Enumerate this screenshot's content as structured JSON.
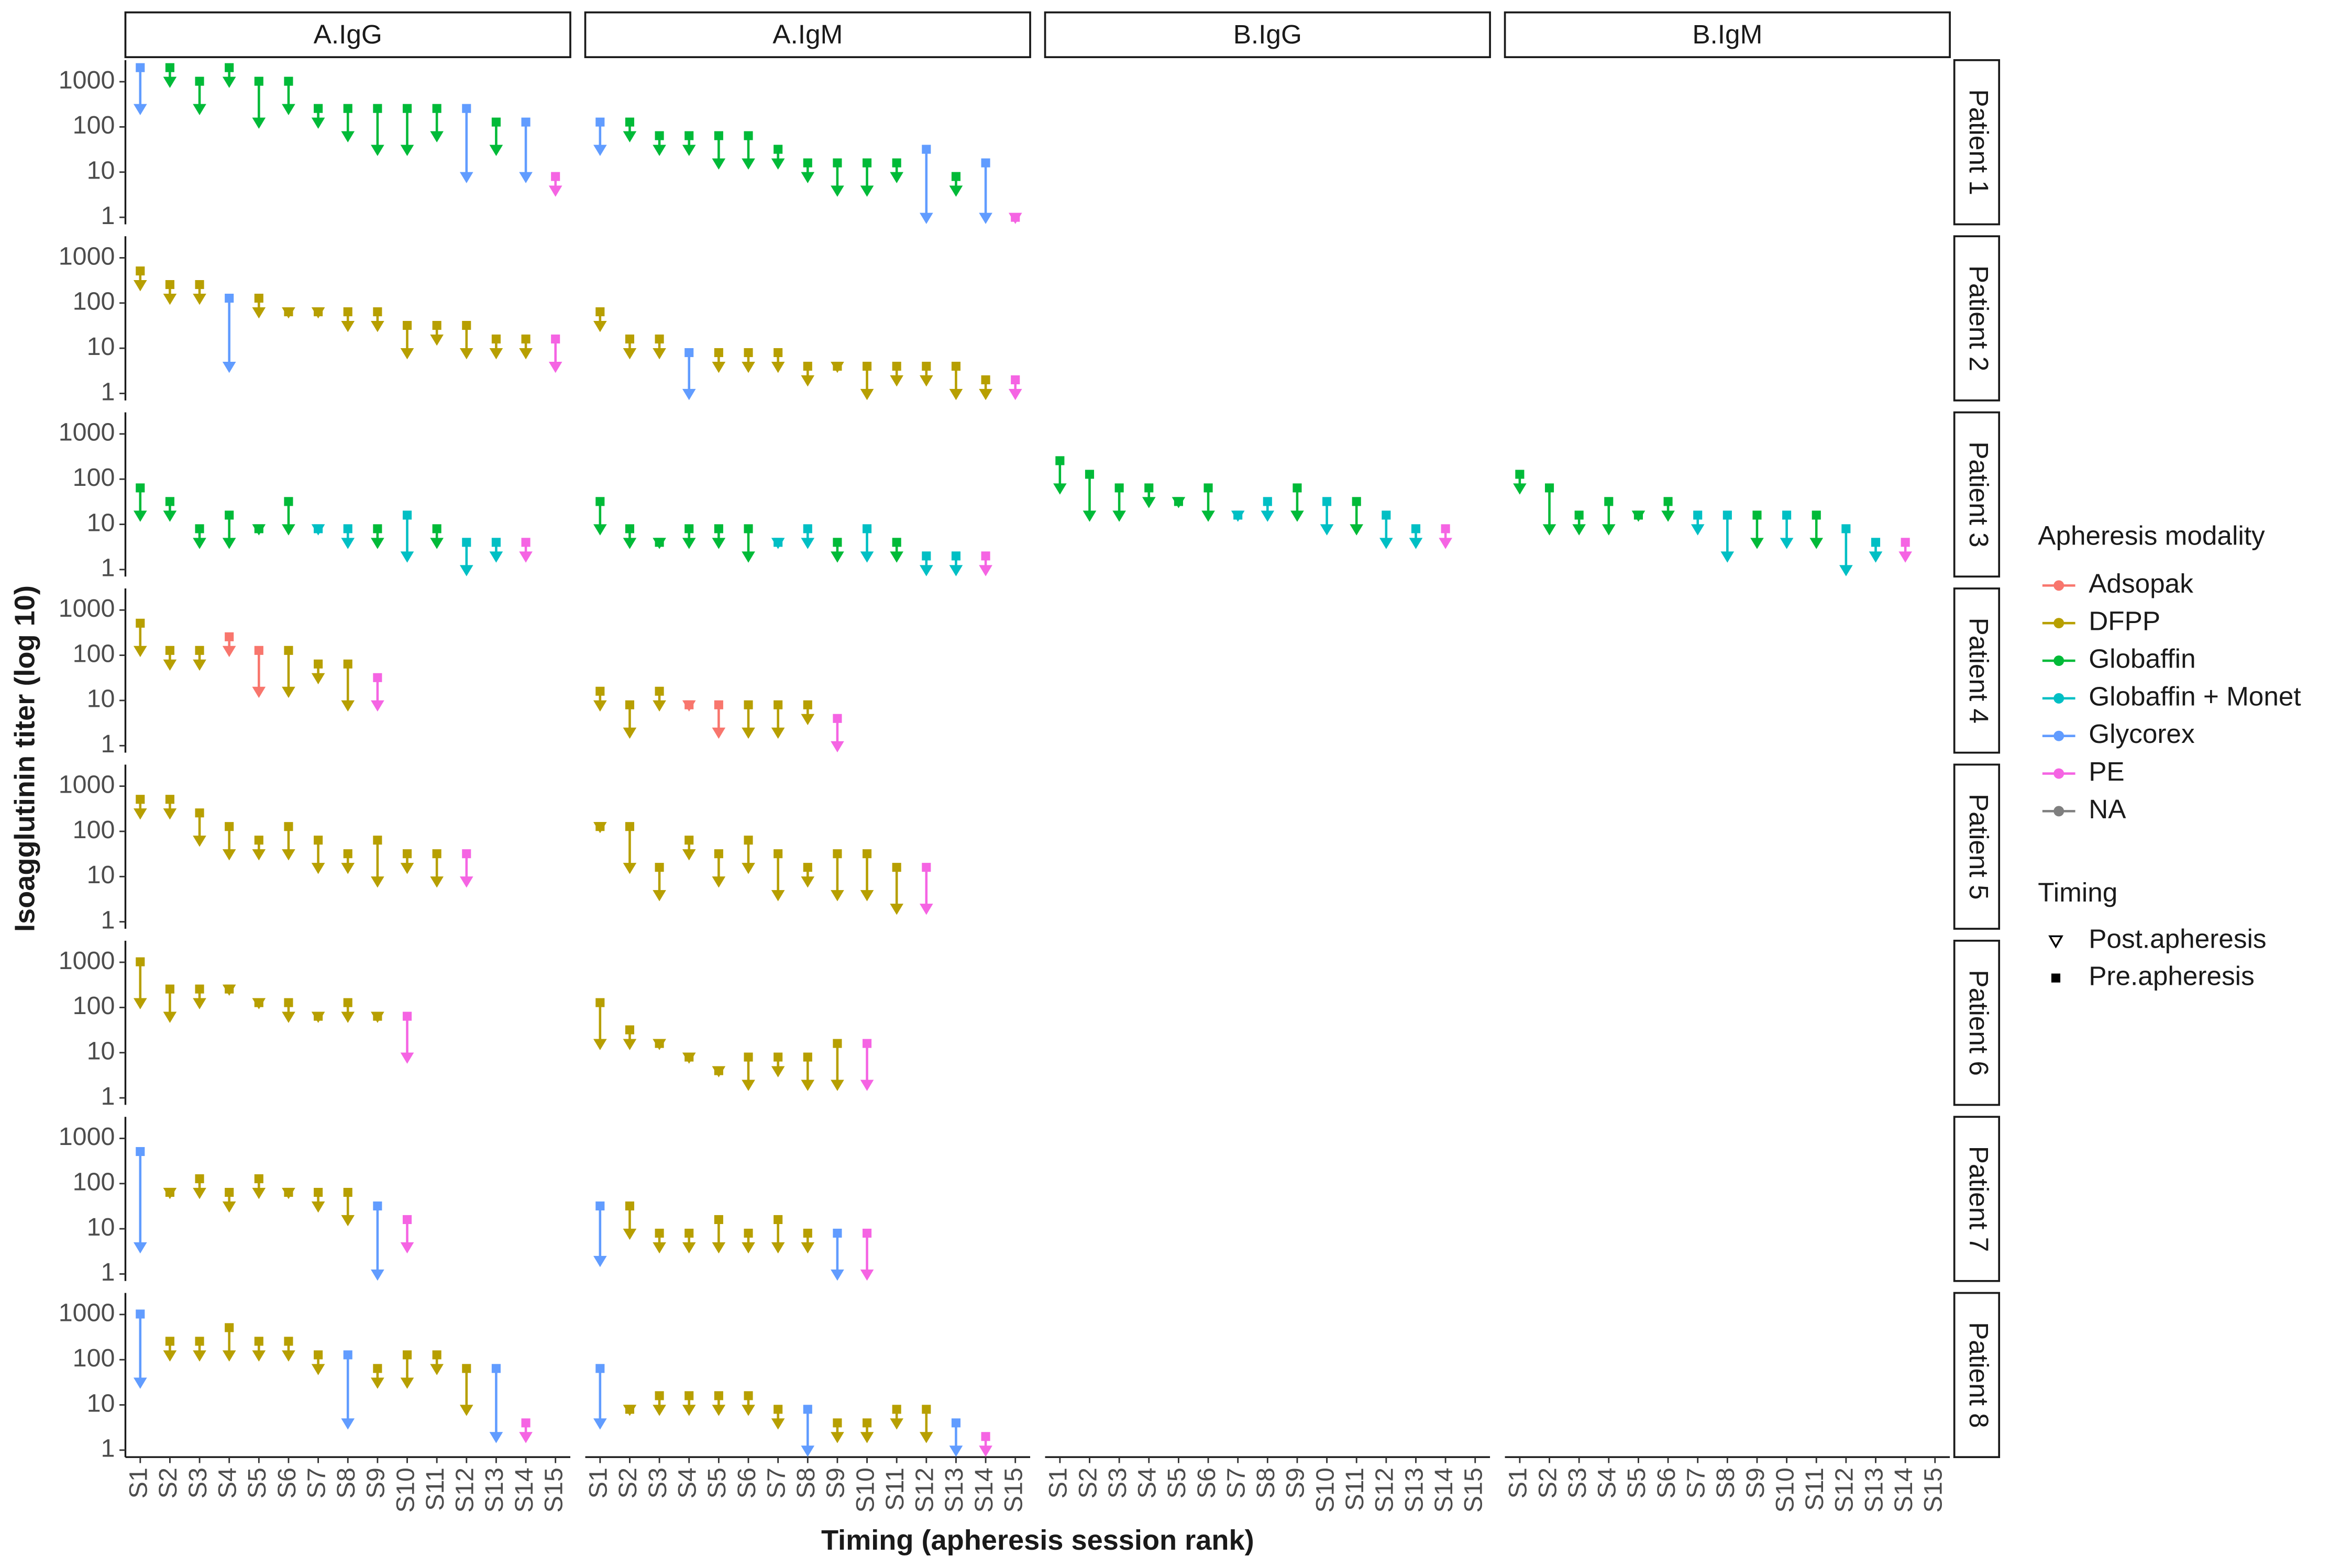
{
  "chart_data": {
    "type": "dumbbell",
    "log_scale": true,
    "x_label": "Timing (apheresis session rank)",
    "y_label": "Isoagglutinin titer (log 10)",
    "categories": [
      "S1",
      "S2",
      "S3",
      "S4",
      "S5",
      "S6",
      "S7",
      "S8",
      "S9",
      "S10",
      "S11",
      "S12",
      "S13",
      "S14",
      "S15"
    ],
    "columns": [
      "A.IgG",
      "A.IgM",
      "B.IgG",
      "B.IgM"
    ],
    "rows": [
      "Patient 1",
      "Patient 2",
      "Patient 3",
      "Patient 4",
      "Patient 5",
      "Patient 6",
      "Patient 7",
      "Patient 8"
    ],
    "ylim": [
      0.7,
      3000
    ],
    "yticks": [
      1,
      10,
      100,
      1000
    ],
    "legend": {
      "title": "Apheresis modality",
      "entries": [
        {
          "name": "Adsopak",
          "color": "#F8766D"
        },
        {
          "name": "DFPP",
          "color": "#B79F00"
        },
        {
          "name": "Globaffin",
          "color": "#00BA38"
        },
        {
          "name": "Globaffin + Monet",
          "color": "#00BFC4"
        },
        {
          "name": "Glycorex",
          "color": "#619CFF"
        },
        {
          "name": "PE",
          "color": "#F564E3"
        },
        {
          "name": "NA",
          "color": "#7F7F7F"
        }
      ]
    },
    "shape_legend": {
      "title": "Timing",
      "entries": [
        "Post.apheresis",
        "Pre.apheresis"
      ]
    },
    "panels": [
      [
        {
          "pre": [
            2048,
            2048,
            1024,
            2048,
            1024,
            1024,
            256,
            256,
            256,
            256,
            256,
            256,
            128,
            128,
            8
          ],
          "post": [
            256,
            1024,
            256,
            1024,
            128,
            256,
            128,
            64,
            32,
            32,
            64,
            8,
            32,
            8,
            4
          ],
          "modality": [
            "Glycorex",
            "Globaffin",
            "Globaffin",
            "Globaffin",
            "Globaffin",
            "Globaffin",
            "Globaffin",
            "Globaffin",
            "Globaffin",
            "Globaffin",
            "Globaffin",
            "Glycorex",
            "Globaffin",
            "Glycorex",
            "PE"
          ]
        },
        {
          "pre": [
            128,
            128,
            64,
            64,
            64,
            64,
            32,
            16,
            16,
            16,
            16,
            32,
            8,
            16,
            1
          ],
          "post": [
            32,
            64,
            32,
            32,
            16,
            16,
            16,
            8,
            4,
            4,
            8,
            1,
            4,
            1,
            1
          ],
          "modality": [
            "Glycorex",
            "Globaffin",
            "Globaffin",
            "Globaffin",
            "Globaffin",
            "Globaffin",
            "Globaffin",
            "Globaffin",
            "Globaffin",
            "Globaffin",
            "Globaffin",
            "Glycorex",
            "Globaffin",
            "Glycorex",
            "PE"
          ]
        },
        null,
        null
      ],
      [
        {
          "pre": [
            512,
            256,
            256,
            128,
            128,
            64,
            64,
            64,
            64,
            32,
            32,
            32,
            16,
            16,
            16
          ],
          "post": [
            256,
            128,
            128,
            4,
            64,
            64,
            64,
            32,
            32,
            8,
            16,
            8,
            8,
            8,
            4
          ],
          "modality": [
            "DFPP",
            "DFPP",
            "DFPP",
            "Glycorex",
            "DFPP",
            "DFPP",
            "DFPP",
            "DFPP",
            "DFPP",
            "DFPP",
            "DFPP",
            "DFPP",
            "DFPP",
            "DFPP",
            "PE"
          ]
        },
        {
          "pre": [
            64,
            16,
            16,
            8,
            8,
            8,
            8,
            4,
            4,
            4,
            4,
            4,
            4,
            2,
            2
          ],
          "post": [
            32,
            8,
            8,
            1,
            4,
            4,
            4,
            2,
            4,
            1,
            2,
            2,
            1,
            1,
            1
          ],
          "modality": [
            "DFPP",
            "DFPP",
            "DFPP",
            "Glycorex",
            "DFPP",
            "DFPP",
            "DFPP",
            "DFPP",
            "DFPP",
            "DFPP",
            "DFPP",
            "DFPP",
            "DFPP",
            "DFPP",
            "PE"
          ]
        },
        null,
        null
      ],
      [
        {
          "pre": [
            64,
            32,
            8,
            16,
            8,
            32,
            8,
            8,
            8,
            16,
            8,
            4,
            4,
            4,
            null
          ],
          "post": [
            16,
            16,
            4,
            4,
            8,
            8,
            8,
            4,
            4,
            2,
            4,
            1,
            2,
            2,
            null
          ],
          "modality": [
            "Globaffin",
            "Globaffin",
            "Globaffin",
            "Globaffin",
            "Globaffin",
            "Globaffin",
            "Globaffin + Monet",
            "Globaffin + Monet",
            "Globaffin",
            "Globaffin + Monet",
            "Globaffin",
            "Globaffin + Monet",
            "Globaffin + Monet",
            "PE",
            null
          ]
        },
        {
          "pre": [
            32,
            8,
            4,
            8,
            8,
            8,
            4,
            8,
            4,
            8,
            4,
            2,
            2,
            2,
            null
          ],
          "post": [
            8,
            4,
            4,
            4,
            4,
            2,
            4,
            4,
            2,
            2,
            2,
            1,
            1,
            1,
            null
          ],
          "modality": [
            "Globaffin",
            "Globaffin",
            "Globaffin",
            "Globaffin",
            "Globaffin",
            "Globaffin",
            "Globaffin + Monet",
            "Globaffin + Monet",
            "Globaffin",
            "Globaffin + Monet",
            "Globaffin",
            "Globaffin + Monet",
            "Globaffin + Monet",
            "PE",
            null
          ]
        },
        {
          "pre": [
            256,
            128,
            64,
            64,
            32,
            64,
            16,
            32,
            64,
            32,
            32,
            16,
            8,
            8,
            null
          ],
          "post": [
            64,
            16,
            16,
            32,
            32,
            16,
            16,
            16,
            16,
            8,
            8,
            4,
            4,
            4,
            null
          ],
          "modality": [
            "Globaffin",
            "Globaffin",
            "Globaffin",
            "Globaffin",
            "Globaffin",
            "Globaffin",
            "Globaffin + Monet",
            "Globaffin + Monet",
            "Globaffin",
            "Globaffin + Monet",
            "Globaffin",
            "Globaffin + Monet",
            "Globaffin + Monet",
            "PE",
            null
          ]
        },
        {
          "pre": [
            128,
            64,
            16,
            32,
            16,
            32,
            16,
            16,
            16,
            16,
            16,
            8,
            4,
            4,
            null
          ],
          "post": [
            64,
            8,
            8,
            8,
            16,
            16,
            8,
            2,
            4,
            4,
            4,
            1,
            2,
            2,
            null
          ],
          "modality": [
            "Globaffin",
            "Globaffin",
            "Globaffin",
            "Globaffin",
            "Globaffin",
            "Globaffin",
            "Globaffin + Monet",
            "Globaffin + Monet",
            "Globaffin",
            "Globaffin + Monet",
            "Globaffin",
            "Globaffin + Monet",
            "Globaffin + Monet",
            "PE",
            null
          ]
        }
      ],
      [
        {
          "pre": [
            512,
            128,
            128,
            256,
            128,
            128,
            64,
            64,
            32,
            null,
            null,
            null,
            null,
            null,
            null
          ],
          "post": [
            128,
            64,
            64,
            128,
            16,
            16,
            32,
            8,
            8,
            null,
            null,
            null,
            null,
            null,
            null
          ],
          "modality": [
            "DFPP",
            "DFPP",
            "DFPP",
            "Adsopak",
            "Adsopak",
            "DFPP",
            "DFPP",
            "DFPP",
            "PE",
            null,
            null,
            null,
            null,
            null,
            null
          ]
        },
        {
          "pre": [
            16,
            8,
            16,
            8,
            8,
            8,
            8,
            8,
            4,
            null,
            null,
            null,
            null,
            null,
            null
          ],
          "post": [
            8,
            2,
            8,
            8,
            2,
            2,
            2,
            4,
            1,
            null,
            null,
            null,
            null,
            null,
            null
          ],
          "modality": [
            "DFPP",
            "DFPP",
            "DFPP",
            "Adsopak",
            "Adsopak",
            "DFPP",
            "DFPP",
            "DFPP",
            "PE",
            null,
            null,
            null,
            null,
            null,
            null
          ]
        },
        null,
        null
      ],
      [
        {
          "pre": [
            512,
            512,
            256,
            128,
            64,
            128,
            64,
            32,
            64,
            32,
            32,
            32,
            null,
            null,
            null
          ],
          "post": [
            256,
            256,
            64,
            32,
            32,
            32,
            16,
            16,
            8,
            16,
            8,
            8,
            null,
            null,
            null
          ],
          "modality": [
            "DFPP",
            "DFPP",
            "DFPP",
            "DFPP",
            "DFPP",
            "DFPP",
            "DFPP",
            "DFPP",
            "DFPP",
            "DFPP",
            "DFPP",
            "PE",
            null,
            null,
            null
          ]
        },
        {
          "pre": [
            128,
            128,
            16,
            64,
            32,
            64,
            32,
            16,
            32,
            32,
            16,
            16,
            null,
            null,
            null
          ],
          "post": [
            128,
            16,
            4,
            32,
            8,
            16,
            4,
            8,
            4,
            4,
            2,
            2,
            null,
            null,
            null
          ],
          "modality": [
            "DFPP",
            "DFPP",
            "DFPP",
            "DFPP",
            "DFPP",
            "DFPP",
            "DFPP",
            "DFPP",
            "DFPP",
            "DFPP",
            "DFPP",
            "PE",
            null,
            null,
            null
          ]
        },
        null,
        null
      ],
      [
        {
          "pre": [
            1024,
            256,
            256,
            256,
            128,
            128,
            64,
            128,
            64,
            64,
            null,
            null,
            null,
            null,
            null
          ],
          "post": [
            128,
            64,
            128,
            256,
            128,
            64,
            64,
            64,
            64,
            8,
            null,
            null,
            null,
            null,
            null
          ],
          "modality": [
            "DFPP",
            "DFPP",
            "DFPP",
            "DFPP",
            "DFPP",
            "DFPP",
            "DFPP",
            "DFPP",
            "DFPP",
            "PE",
            null,
            null,
            null,
            null,
            null
          ]
        },
        {
          "pre": [
            128,
            32,
            16,
            8,
            4,
            8,
            8,
            8,
            16,
            16,
            null,
            null,
            null,
            null,
            null
          ],
          "post": [
            16,
            16,
            16,
            8,
            4,
            2,
            4,
            2,
            2,
            2,
            null,
            null,
            null,
            null,
            null
          ],
          "modality": [
            "DFPP",
            "DFPP",
            "DFPP",
            "DFPP",
            "DFPP",
            "DFPP",
            "DFPP",
            "DFPP",
            "DFPP",
            "PE",
            null,
            null,
            null,
            null,
            null
          ]
        },
        null,
        null
      ],
      [
        {
          "pre": [
            512,
            64,
            128,
            64,
            128,
            64,
            64,
            64,
            32,
            16,
            null,
            null,
            null,
            null,
            null
          ],
          "post": [
            4,
            64,
            64,
            32,
            64,
            64,
            32,
            16,
            1,
            4,
            null,
            null,
            null,
            null,
            null
          ],
          "modality": [
            "Glycorex",
            "DFPP",
            "DFPP",
            "DFPP",
            "DFPP",
            "DFPP",
            "DFPP",
            "DFPP",
            "Glycorex",
            "PE",
            null,
            null,
            null,
            null,
            null
          ]
        },
        {
          "pre": [
            32,
            32,
            8,
            8,
            16,
            8,
            16,
            8,
            8,
            8,
            null,
            null,
            null,
            null,
            null
          ],
          "post": [
            2,
            8,
            4,
            4,
            4,
            4,
            4,
            4,
            1,
            1,
            null,
            null,
            null,
            null,
            null
          ],
          "modality": [
            "Glycorex",
            "DFPP",
            "DFPP",
            "DFPP",
            "DFPP",
            "DFPP",
            "DFPP",
            "DFPP",
            "Glycorex",
            "PE",
            null,
            null,
            null,
            null,
            null
          ]
        },
        null,
        null
      ],
      [
        {
          "pre": [
            1024,
            256,
            256,
            512,
            256,
            256,
            128,
            128,
            64,
            128,
            128,
            64,
            64,
            4,
            null
          ],
          "post": [
            32,
            128,
            128,
            128,
            128,
            128,
            64,
            4,
            32,
            32,
            64,
            8,
            2,
            2,
            null
          ],
          "modality": [
            "Glycorex",
            "DFPP",
            "DFPP",
            "DFPP",
            "DFPP",
            "DFPP",
            "DFPP",
            "Glycorex",
            "DFPP",
            "DFPP",
            "DFPP",
            "DFPP",
            "Glycorex",
            "PE",
            null
          ]
        },
        {
          "pre": [
            64,
            8,
            16,
            16,
            16,
            16,
            8,
            8,
            4,
            4,
            8,
            8,
            4,
            2,
            null
          ],
          "post": [
            4,
            8,
            8,
            8,
            8,
            8,
            4,
            1,
            2,
            2,
            4,
            2,
            1,
            1,
            null
          ],
          "modality": [
            "Glycorex",
            "DFPP",
            "DFPP",
            "DFPP",
            "DFPP",
            "DFPP",
            "DFPP",
            "Glycorex",
            "DFPP",
            "DFPP",
            "DFPP",
            "DFPP",
            "Glycorex",
            "PE",
            null
          ]
        },
        null,
        null
      ]
    ]
  }
}
